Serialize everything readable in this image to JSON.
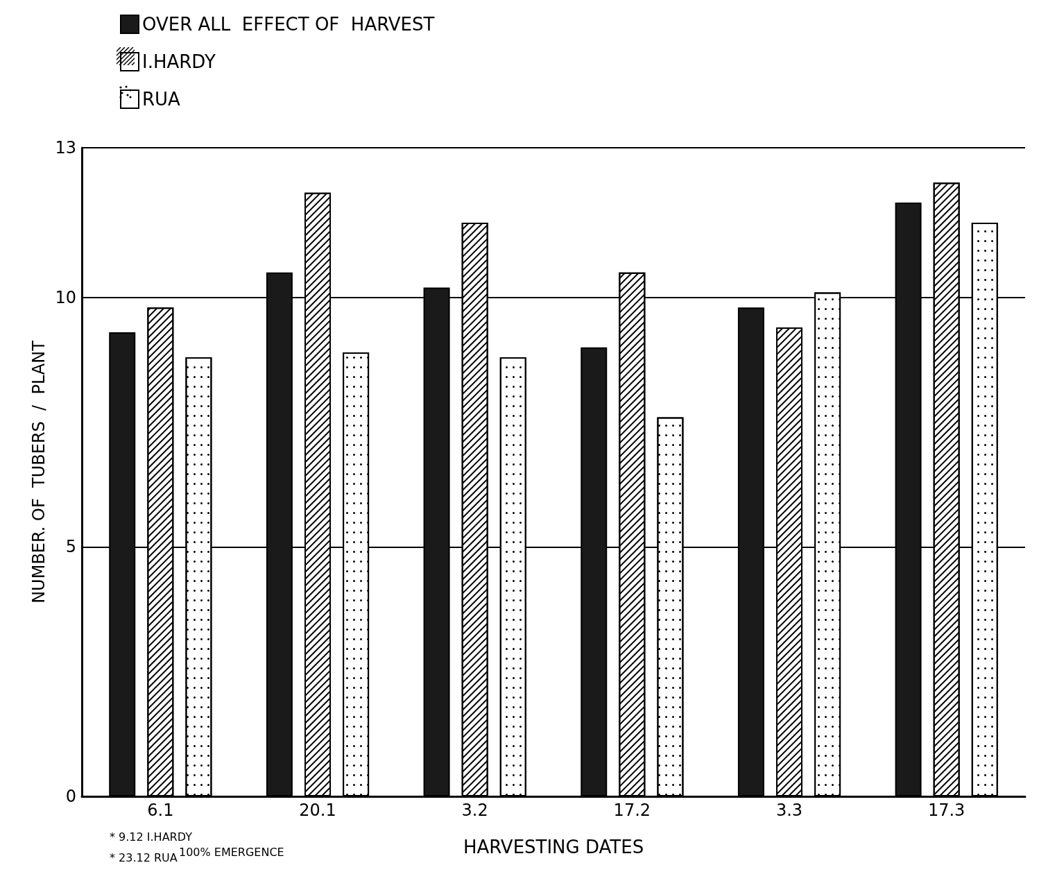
{
  "chart_data": {
    "type": "bar",
    "xlabel": "HARVESTING DATES",
    "ylabel": "NUMBER. OF  TUBERS  /  PLANT",
    "categories": [
      "6.1",
      "20.1",
      "3.2",
      "17.2",
      "3.3",
      "17.3"
    ],
    "series": [
      {
        "name": "OVER ALL  EFFECT OF  HARVEST",
        "color": "#1a1a1a",
        "values": [
          9.3,
          10.5,
          10.2,
          9.0,
          9.8,
          11.9
        ]
      },
      {
        "name": "I.HARDY",
        "color": "#ffffff",
        "values": [
          9.8,
          12.1,
          11.5,
          10.5,
          9.4,
          12.3
        ]
      },
      {
        "name": "RUA",
        "color": "#ffffff",
        "values": [
          8.8,
          8.9,
          8.8,
          7.6,
          10.1,
          11.5
        ]
      }
    ],
    "ylim": [
      0,
      13
    ],
    "yticks": [
      0,
      5,
      10,
      13
    ],
    "grid": "y",
    "legend": "top left",
    "annotations": [
      "* 9.12 I.HARDY",
      "* 23.12 RUA",
      "100% EMERGENCE"
    ]
  }
}
